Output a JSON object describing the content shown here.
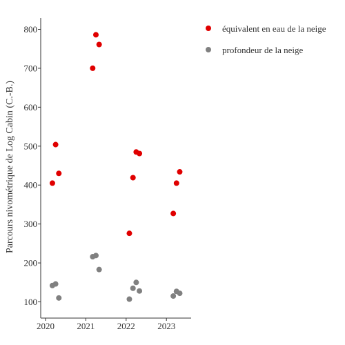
{
  "chart_data": {
    "type": "scatter",
    "title": "",
    "xlabel": "",
    "ylabel": "Parcours nivométrique de Log Cabin (C.-B.)",
    "xlim": [
      2020,
      2023.65
    ],
    "ylim": [
      60,
      830
    ],
    "xticks": [
      {
        "value": 2020,
        "label": "2020"
      },
      {
        "value": 2021,
        "label": "2021"
      },
      {
        "value": 2022,
        "label": "2022"
      },
      {
        "value": 2023,
        "label": "2023"
      }
    ],
    "yticks": [
      {
        "value": 100,
        "label": "100"
      },
      {
        "value": 200,
        "label": "200"
      },
      {
        "value": 300,
        "label": "300"
      },
      {
        "value": 400,
        "label": "400"
      },
      {
        "value": 500,
        "label": "500"
      },
      {
        "value": 600,
        "label": "600"
      },
      {
        "value": 700,
        "label": "700"
      },
      {
        "value": 800,
        "label": "800"
      }
    ],
    "grid": false,
    "legend": "top-right",
    "series": [
      {
        "name": "équivalent en eau de la neige",
        "color": "#e00000",
        "points": [
          {
            "x": 2020.17,
            "y": 405
          },
          {
            "x": 2020.25,
            "y": 504
          },
          {
            "x": 2020.33,
            "y": 430
          },
          {
            "x": 2021.17,
            "y": 700
          },
          {
            "x": 2021.25,
            "y": 786
          },
          {
            "x": 2021.33,
            "y": 761
          },
          {
            "x": 2022.08,
            "y": 276
          },
          {
            "x": 2022.17,
            "y": 419
          },
          {
            "x": 2022.25,
            "y": 485
          },
          {
            "x": 2022.33,
            "y": 481
          },
          {
            "x": 2023.17,
            "y": 327
          },
          {
            "x": 2023.25,
            "y": 405
          },
          {
            "x": 2023.33,
            "y": 434
          }
        ]
      },
      {
        "name": "profondeur de la neige",
        "color": "#808080",
        "points": [
          {
            "x": 2020.17,
            "y": 142
          },
          {
            "x": 2020.25,
            "y": 146
          },
          {
            "x": 2020.33,
            "y": 110
          },
          {
            "x": 2021.17,
            "y": 216
          },
          {
            "x": 2021.25,
            "y": 219
          },
          {
            "x": 2021.33,
            "y": 183
          },
          {
            "x": 2022.08,
            "y": 107
          },
          {
            "x": 2022.17,
            "y": 135
          },
          {
            "x": 2022.25,
            "y": 150
          },
          {
            "x": 2022.33,
            "y": 128
          },
          {
            "x": 2023.17,
            "y": 115
          },
          {
            "x": 2023.25,
            "y": 127
          },
          {
            "x": 2023.33,
            "y": 122
          }
        ]
      }
    ]
  }
}
